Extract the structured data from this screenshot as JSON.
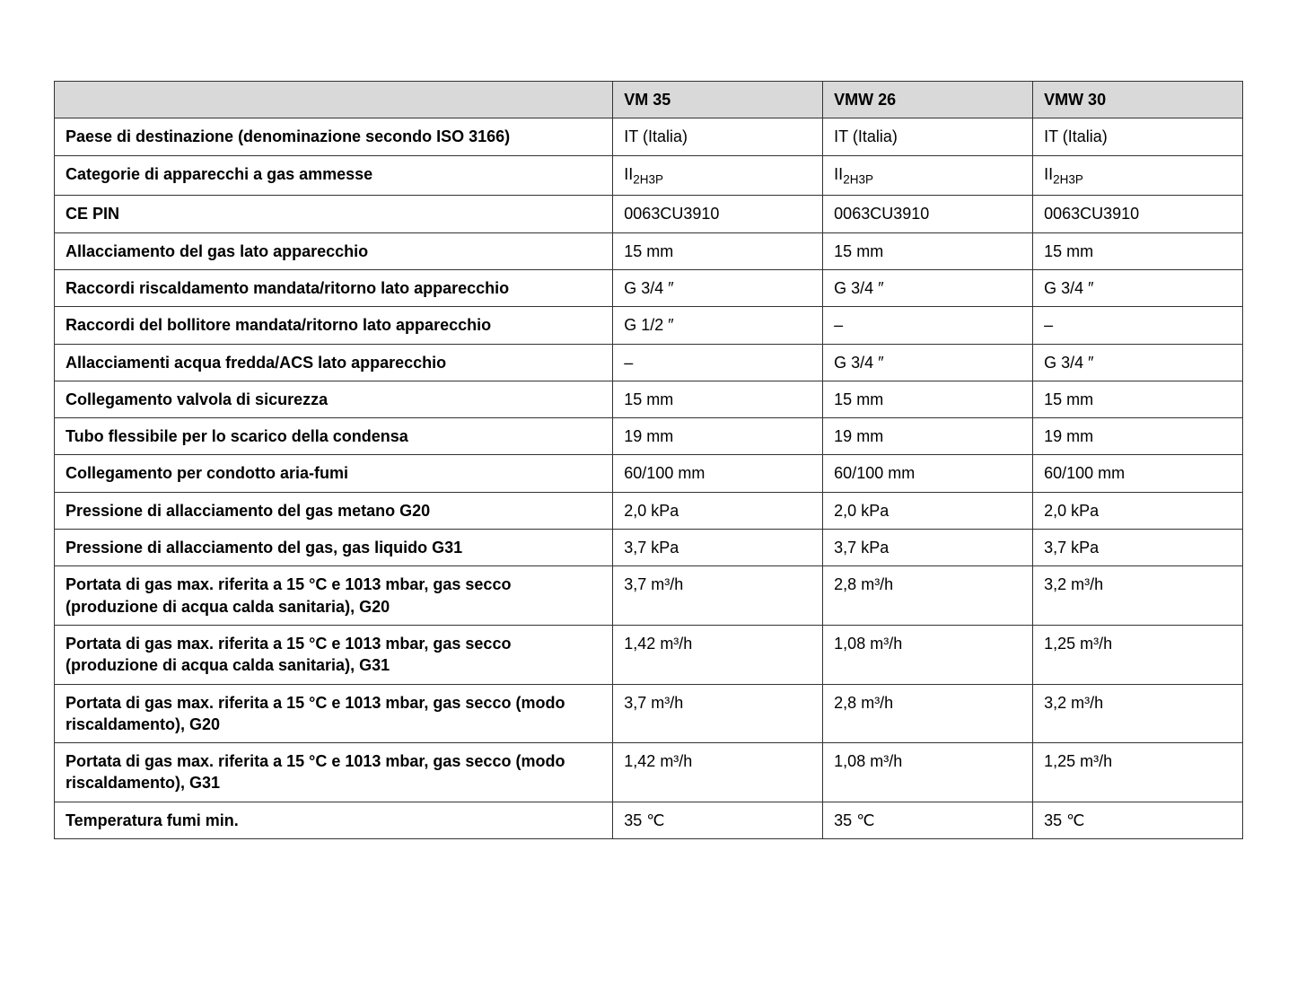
{
  "table": {
    "header_bg": "#d9d9d9",
    "border_color": "#333333",
    "columns": [
      "",
      "VM 35",
      "VMW 26",
      "VMW 30"
    ],
    "col_widths_pct": [
      47,
      17.666,
      17.666,
      17.666
    ],
    "rows": [
      {
        "label": "Paese di destinazione (denominazione secondo ISO 3166)",
        "values": [
          "IT (Italia)",
          "IT (Italia)",
          "IT (Italia)"
        ]
      },
      {
        "label": "Categorie di apparecchi a gas ammesse",
        "values_html": true,
        "values": [
          "II<sub>2H3P</sub>",
          "II<sub>2H3P</sub>",
          "II<sub>2H3P</sub>"
        ]
      },
      {
        "label": "CE PIN",
        "values": [
          "0063CU3910",
          "0063CU3910",
          "0063CU3910"
        ]
      },
      {
        "label": "Allacciamento del gas lato apparecchio",
        "values": [
          "15 mm",
          "15 mm",
          "15 mm"
        ]
      },
      {
        "label": "Raccordi riscaldamento mandata/ritorno lato apparecchio",
        "values": [
          "G 3/4 ″",
          "G 3/4 ″",
          "G 3/4 ″"
        ]
      },
      {
        "label": "Raccordi del bollitore mandata/ritorno lato apparecchio",
        "values": [
          "G 1/2 ″",
          "–",
          "–"
        ]
      },
      {
        "label": "Allacciamenti acqua fredda/ACS lato apparecchio",
        "values": [
          "–",
          "G 3/4 ″",
          "G 3/4 ″"
        ]
      },
      {
        "label": "Collegamento valvola di sicurezza",
        "values": [
          "15 mm",
          "15 mm",
          "15 mm"
        ]
      },
      {
        "label": "Tubo flessibile per lo scarico della condensa",
        "values": [
          "19 mm",
          "19 mm",
          "19 mm"
        ]
      },
      {
        "label": "Collegamento per condotto aria-fumi",
        "values": [
          "60/100 mm",
          "60/100 mm",
          "60/100 mm"
        ]
      },
      {
        "label": "Pressione di allacciamento del gas metano G20",
        "values": [
          "2,0 kPa",
          "2,0 kPa",
          "2,0 kPa"
        ]
      },
      {
        "label": "Pressione di allacciamento del gas, gas liquido G31",
        "values": [
          "3,7 kPa",
          "3,7 kPa",
          "3,7 kPa"
        ]
      },
      {
        "label": "Portata di gas max. riferita a 15 °C e 1013 mbar, gas secco (produzione di acqua calda sanitaria), G20",
        "values": [
          "3,7 m³/h",
          "2,8 m³/h",
          "3,2 m³/h"
        ]
      },
      {
        "label": "Portata di gas max. riferita a 15 °C e 1013 mbar, gas secco (produzione di acqua calda sanitaria), G31",
        "values": [
          "1,42 m³/h",
          "1,08 m³/h",
          "1,25 m³/h"
        ]
      },
      {
        "label": "Portata di gas max. riferita a 15 °C e 1013 mbar, gas secco (modo riscaldamento), G20",
        "values": [
          "3,7 m³/h",
          "2,8 m³/h",
          "3,2 m³/h"
        ]
      },
      {
        "label": "Portata di gas max. riferita a 15 °C e 1013 mbar, gas secco (modo riscaldamento), G31",
        "values": [
          "1,42 m³/h",
          "1,08 m³/h",
          "1,25 m³/h"
        ]
      },
      {
        "label": "Temperatura fumi min.",
        "values": [
          "35 ℃",
          "35 ℃",
          "35 ℃"
        ]
      }
    ]
  }
}
